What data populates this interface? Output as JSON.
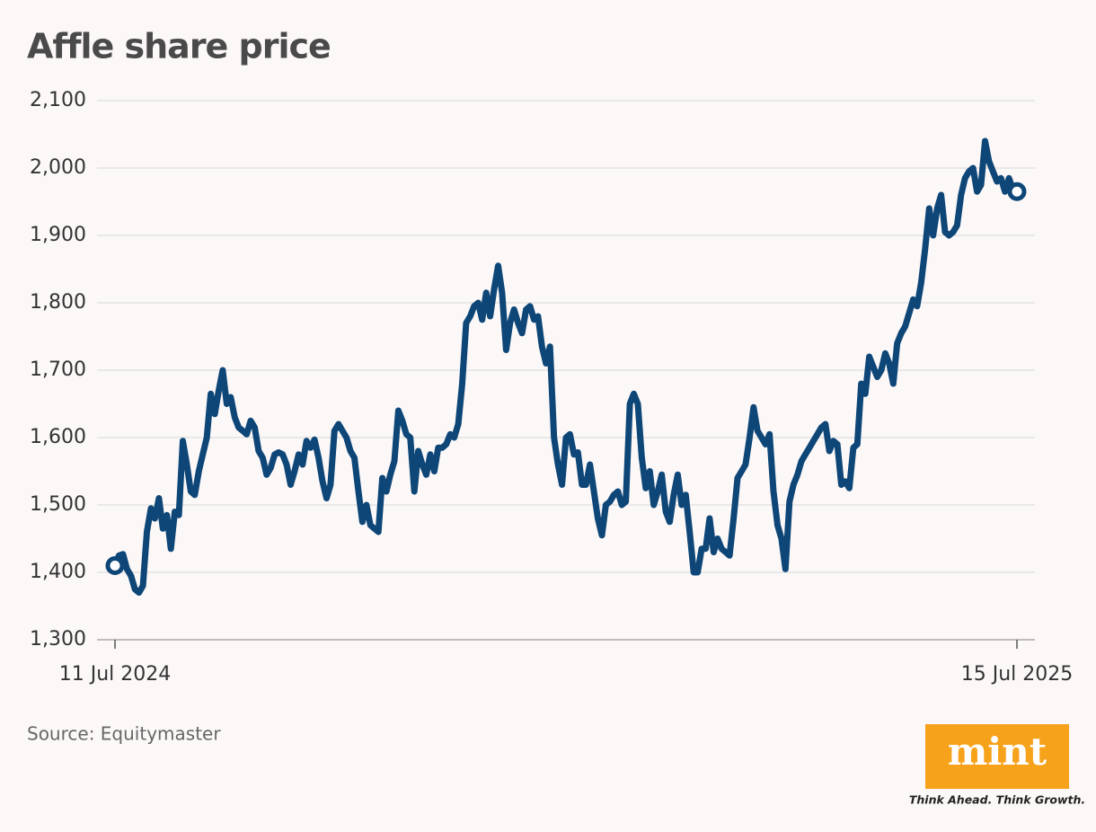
{
  "chart_data": {
    "type": "line",
    "title": "Affle share price",
    "source": "Source: Equitymaster",
    "logo": {
      "text": "mint",
      "tagline": "Think Ahead. Think Growth."
    },
    "categories": [
      "11 Jul 2024",
      null,
      null,
      null,
      null,
      null,
      null,
      null,
      null,
      null,
      null,
      null,
      null,
      null,
      null,
      null,
      null,
      null,
      null,
      null,
      null,
      null,
      null,
      null,
      null,
      null,
      null,
      null,
      null,
      null,
      null,
      null,
      null,
      null,
      null,
      null,
      null,
      null,
      null,
      null,
      null,
      null,
      null,
      null,
      null,
      null,
      null,
      null,
      null,
      null,
      null,
      null,
      null,
      null,
      null,
      null,
      null,
      null,
      null,
      null,
      null,
      null,
      null,
      null,
      null,
      null,
      null,
      null,
      null,
      null,
      null,
      null,
      null,
      null,
      null,
      null,
      null,
      null,
      null,
      null,
      null,
      null,
      null,
      null,
      null,
      null,
      null,
      null,
      null,
      null,
      null,
      null,
      null,
      null,
      null,
      null,
      null,
      null,
      null,
      null,
      null,
      null,
      null,
      null,
      null,
      null,
      null,
      null,
      null,
      null,
      null,
      null,
      null,
      null,
      null,
      null,
      null,
      null,
      null,
      null,
      null,
      null,
      null,
      null,
      null,
      null,
      null,
      null,
      null,
      null,
      null,
      null,
      null,
      null,
      null,
      null,
      null,
      null,
      null,
      null,
      null,
      null,
      null,
      null,
      null,
      null,
      null,
      null,
      null,
      null,
      null,
      null,
      null,
      null,
      null,
      null,
      null,
      null,
      null,
      null,
      null,
      null,
      null,
      null,
      null,
      null,
      null,
      null,
      null,
      null,
      null,
      null,
      null,
      null,
      null,
      null,
      null,
      null,
      null,
      null,
      null,
      null,
      null,
      null,
      null,
      null,
      null,
      null,
      null,
      null,
      null,
      null,
      null,
      null,
      null,
      null,
      null,
      null,
      null,
      null,
      null,
      null,
      null,
      null,
      null,
      null,
      null,
      null,
      null,
      null,
      null,
      null,
      null,
      null,
      null,
      null,
      null,
      null,
      null,
      null,
      null,
      null,
      null,
      null,
      null,
      null,
      "15 Jul 2025"
    ],
    "series": [
      {
        "name": "Affle",
        "color": "#0d4677",
        "values": [
          1410,
          1425,
          1427,
          1405,
          1395,
          1375,
          1370,
          1380,
          1460,
          1495,
          1480,
          1510,
          1465,
          1485,
          1435,
          1490,
          1485,
          1595,
          1560,
          1520,
          1515,
          1550,
          1575,
          1600,
          1665,
          1635,
          1670,
          1700,
          1650,
          1660,
          1630,
          1615,
          1610,
          1605,
          1625,
          1615,
          1580,
          1570,
          1545,
          1555,
          1575,
          1578,
          1575,
          1560,
          1530,
          1550,
          1575,
          1560,
          1595,
          1585,
          1597,
          1570,
          1535,
          1510,
          1530,
          1610,
          1620,
          1610,
          1600,
          1580,
          1570,
          1520,
          1475,
          1500,
          1470,
          1465,
          1460,
          1540,
          1520,
          1545,
          1565,
          1640,
          1625,
          1605,
          1600,
          1520,
          1580,
          1560,
          1545,
          1575,
          1550,
          1585,
          1585,
          1590,
          1605,
          1600,
          1620,
          1680,
          1770,
          1780,
          1795,
          1800,
          1775,
          1815,
          1780,
          1820,
          1855,
          1815,
          1730,
          1770,
          1790,
          1770,
          1755,
          1790,
          1795,
          1775,
          1780,
          1735,
          1710,
          1735,
          1600,
          1560,
          1530,
          1600,
          1605,
          1575,
          1578,
          1530,
          1530,
          1560,
          1520,
          1480,
          1455,
          1500,
          1505,
          1515,
          1520,
          1500,
          1505,
          1650,
          1665,
          1650,
          1570,
          1525,
          1550,
          1500,
          1520,
          1545,
          1490,
          1475,
          1515,
          1545,
          1500,
          1515,
          1460,
          1400,
          1400,
          1435,
          1435,
          1480,
          1430,
          1450,
          1435,
          1430,
          1425,
          1480,
          1540,
          1550,
          1560,
          1600,
          1645,
          1610,
          1600,
          1590,
          1605,
          1520,
          1470,
          1450,
          1405,
          1505,
          1530,
          1545,
          1565,
          1575,
          1585,
          1595,
          1605,
          1615,
          1620,
          1580,
          1595,
          1590,
          1530,
          1535,
          1525,
          1585,
          1590,
          1680,
          1665,
          1720,
          1705,
          1690,
          1700,
          1725,
          1710,
          1680,
          1740,
          1755,
          1765,
          1785,
          1805,
          1795,
          1830,
          1880,
          1940,
          1900,
          1940,
          1960,
          1905,
          1900,
          1905,
          1915,
          1960,
          1985,
          1995,
          2000,
          1965,
          1975,
          2040,
          2010,
          1995,
          1980,
          1985,
          1965,
          1985,
          1968,
          1965
        ]
      }
    ],
    "ylim": [
      1300,
      2100
    ],
    "yticks": [
      {
        "value": 1300,
        "label": "1,300"
      },
      {
        "value": 1400,
        "label": "1,400"
      },
      {
        "value": 1500,
        "label": "1,500"
      },
      {
        "value": 1600,
        "label": "1,600"
      },
      {
        "value": 1700,
        "label": "1,700"
      },
      {
        "value": 1800,
        "label": "1,800"
      },
      {
        "value": 1900,
        "label": "1,900"
      },
      {
        "value": 2000,
        "label": "2,000"
      },
      {
        "value": 2100,
        "label": "2,100"
      }
    ],
    "grid": true
  }
}
